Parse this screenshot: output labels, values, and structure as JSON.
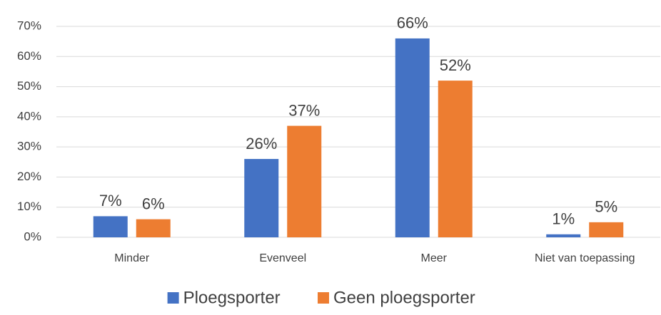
{
  "chart_data": {
    "type": "bar",
    "categories": [
      "Minder",
      "Evenveel",
      "Meer",
      "Niet van toepassing"
    ],
    "series": [
      {
        "name": "Ploegsporter",
        "color": "#4472c4",
        "values": [
          7,
          26,
          66,
          1
        ],
        "value_labels": [
          "7%",
          "26%",
          "66%",
          "1%"
        ]
      },
      {
        "name": "Geen ploegsporter",
        "color": "#ed7d31",
        "values": [
          6,
          37,
          52,
          5
        ],
        "value_labels": [
          "6%",
          "37%",
          "52%",
          "5%"
        ]
      }
    ],
    "ylim": [
      0,
      70
    ],
    "yticks": [
      {
        "value": 0,
        "label": "0%"
      },
      {
        "value": 10,
        "label": "10%"
      },
      {
        "value": 20,
        "label": "20%"
      },
      {
        "value": 30,
        "label": "30%"
      },
      {
        "value": 40,
        "label": "40%"
      },
      {
        "value": 50,
        "label": "50%"
      },
      {
        "value": 60,
        "label": "60%"
      },
      {
        "value": 70,
        "label": "70%"
      }
    ],
    "grid": true,
    "legend": "bottom"
  }
}
